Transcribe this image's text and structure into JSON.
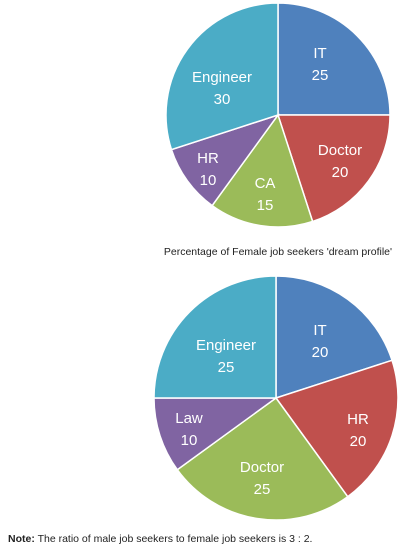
{
  "chart_data": [
    {
      "type": "pie",
      "title": "",
      "categories": [
        "IT",
        "Doctor",
        "CA",
        "HR",
        "Engineer"
      ],
      "values": [
        25,
        20,
        15,
        10,
        30
      ],
      "colors": [
        "#4F81BD",
        "#C0504D",
        "#9BBB59",
        "#8064A2",
        "#4BACC6"
      ]
    },
    {
      "type": "pie",
      "title": "",
      "categories": [
        "IT",
        "HR",
        "Doctor",
        "Law",
        "Engineer"
      ],
      "values": [
        20,
        20,
        25,
        10,
        25
      ],
      "colors": [
        "#4F81BD",
        "#C0504D",
        "#9BBB59",
        "#8064A2",
        "#4BACC6"
      ]
    }
  ],
  "caption": "Percentage of Female job seekers 'dream profile'",
  "note": {
    "label": "Note:",
    "text": " The ratio of male job seekers to female job seekers is 3 : 2."
  }
}
